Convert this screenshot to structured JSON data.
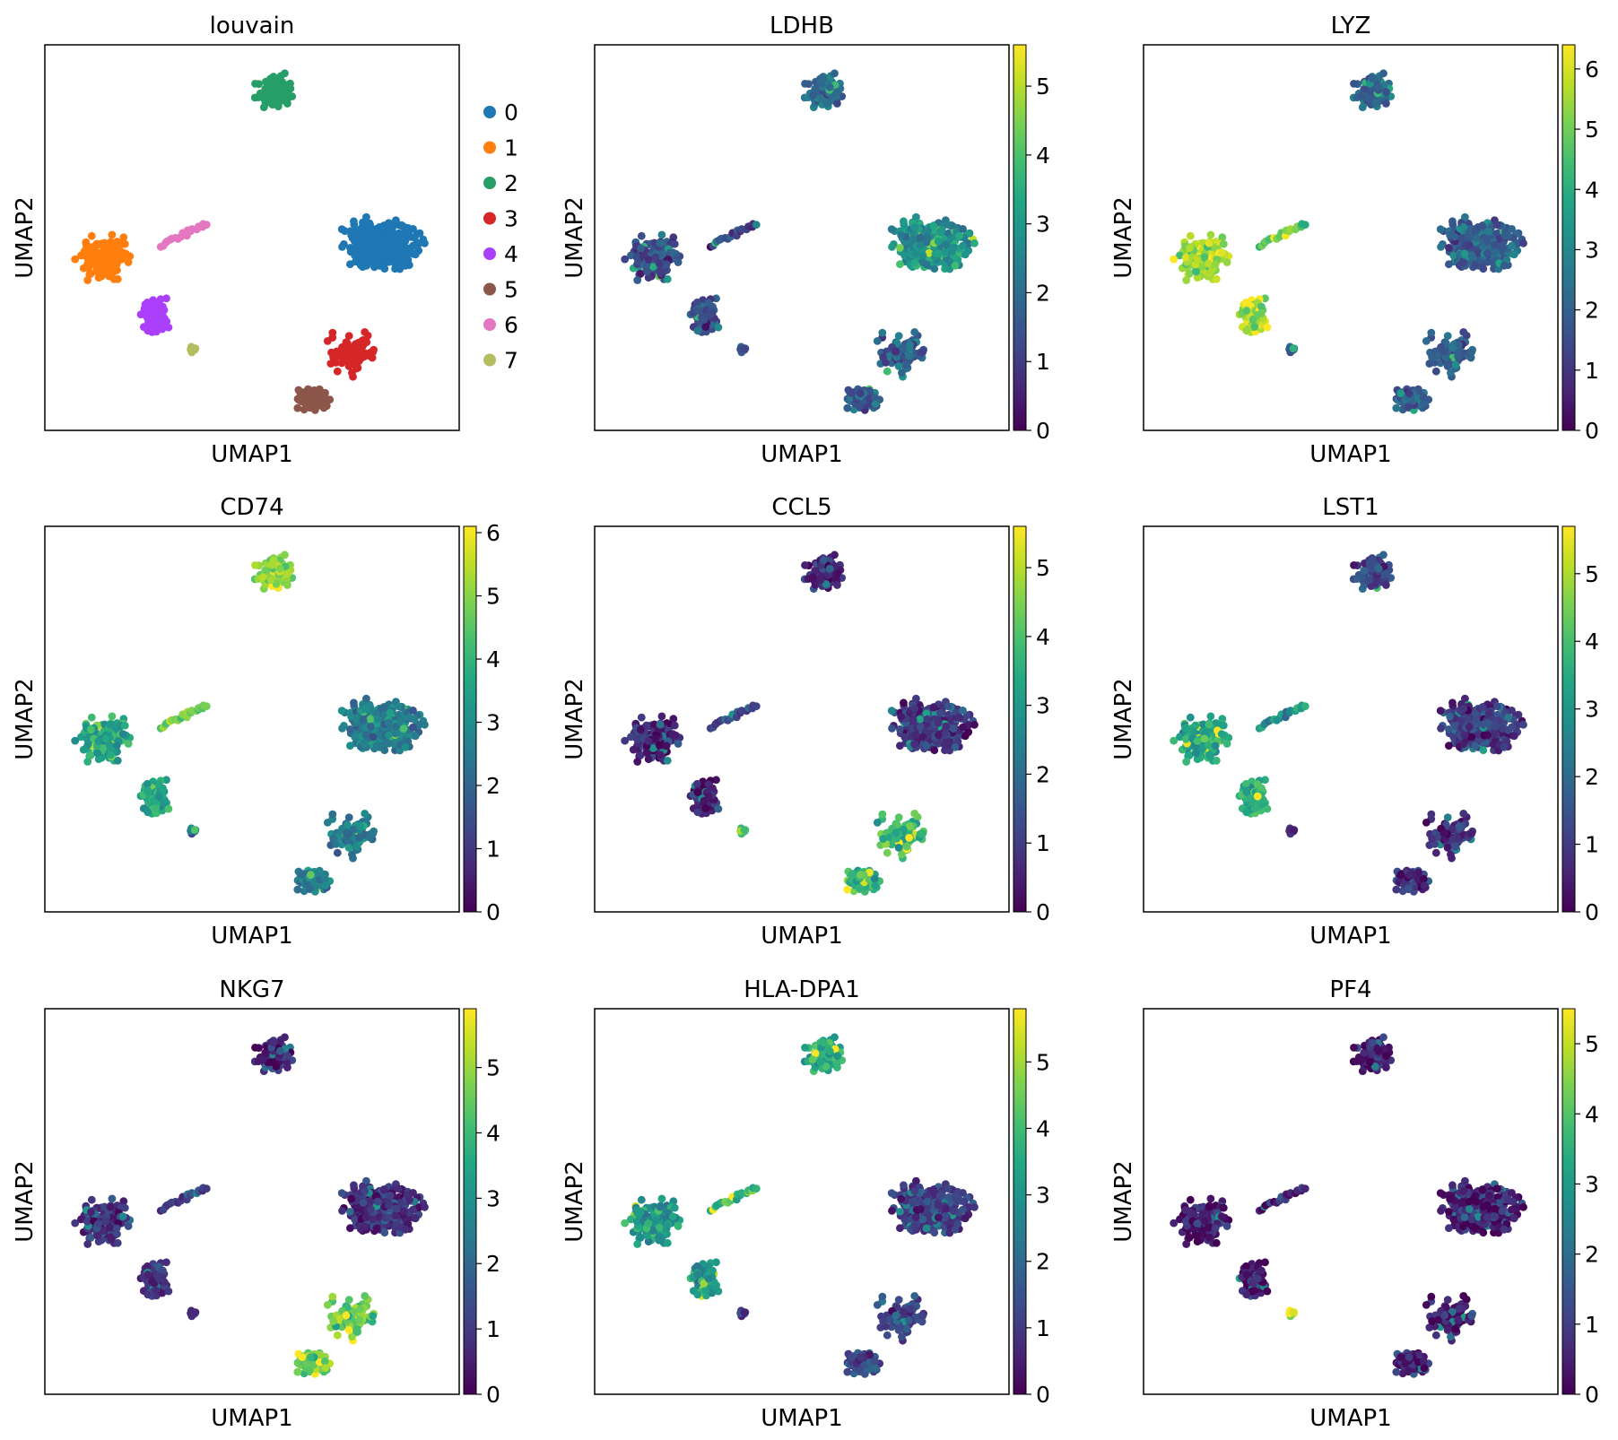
{
  "figure": {
    "xlabel": "UMAP1",
    "ylabel": "UMAP2"
  },
  "chart_data": [
    {
      "type": "scatter",
      "title": "louvain",
      "xlabel": "UMAP1",
      "ylabel": "UMAP2",
      "legend_position": "right",
      "categories": [
        {
          "label": "0",
          "color": "#1f77b4"
        },
        {
          "label": "1",
          "color": "#ff7f0e"
        },
        {
          "label": "2",
          "color": "#279e68"
        },
        {
          "label": "3",
          "color": "#d62728"
        },
        {
          "label": "4",
          "color": "#aa40fc"
        },
        {
          "label": "5",
          "color": "#8c564b"
        },
        {
          "label": "6",
          "color": "#e377c2"
        },
        {
          "label": "7",
          "color": "#b5bd61"
        }
      ]
    },
    {
      "type": "scatter",
      "title": "LDHB",
      "xlabel": "UMAP1",
      "ylabel": "UMAP2",
      "colormap": "viridis",
      "vmax": 5.6,
      "colorbar_ticks": [
        0,
        1,
        2,
        3,
        4,
        5
      ],
      "levels": {
        "top": 2.0,
        "left": 1.4,
        "right": 2.8,
        "lower": 1.7,
        "tail": 1.3,
        "tip": 1.2
      }
    },
    {
      "type": "scatter",
      "title": "LYZ",
      "xlabel": "UMAP1",
      "ylabel": "UMAP2",
      "colormap": "viridis",
      "vmax": 6.4,
      "colorbar_ticks": [
        0,
        1,
        2,
        3,
        4,
        5,
        6
      ],
      "levels": {
        "top": 2.0,
        "left": 5.4,
        "right": 1.9,
        "lower": 1.9,
        "tail": 4.8,
        "tip": 2.2
      }
    },
    {
      "type": "scatter",
      "title": "CD74",
      "xlabel": "UMAP1",
      "ylabel": "UMAP2",
      "colormap": "viridis",
      "vmax": 6.1,
      "colorbar_ticks": [
        0,
        1,
        2,
        3,
        4,
        5,
        6
      ],
      "levels": {
        "top": 5.0,
        "left": 3.6,
        "right": 2.6,
        "lower": 2.5,
        "tail": 4.8,
        "tip": 2.4
      }
    },
    {
      "type": "scatter",
      "title": "CCL5",
      "xlabel": "UMAP1",
      "ylabel": "UMAP2",
      "colormap": "viridis",
      "vmax": 5.6,
      "colorbar_ticks": [
        0,
        1,
        2,
        3,
        4,
        5
      ],
      "levels": {
        "top": 0.6,
        "left": 0.6,
        "right": 0.9,
        "lower": 3.7,
        "tail": 1.2,
        "tip": 4.0
      }
    },
    {
      "type": "scatter",
      "title": "LST1",
      "xlabel": "UMAP1",
      "ylabel": "UMAP2",
      "colormap": "viridis",
      "vmax": 5.7,
      "colorbar_ticks": [
        0,
        1,
        2,
        3,
        4,
        5
      ],
      "levels": {
        "top": 1.2,
        "left": 3.5,
        "right": 1.0,
        "lower": 0.8,
        "tail": 2.8,
        "tip": 0.9
      }
    },
    {
      "type": "scatter",
      "title": "NKG7",
      "xlabel": "UMAP1",
      "ylabel": "UMAP2",
      "colormap": "viridis",
      "vmax": 5.9,
      "colorbar_ticks": [
        0,
        1,
        2,
        3,
        4,
        5
      ],
      "levels": {
        "top": 0.5,
        "left": 0.9,
        "right": 0.8,
        "lower": 4.6,
        "tail": 1.2,
        "tip": 0.8
      }
    },
    {
      "type": "scatter",
      "title": "HLA-DPA1",
      "xlabel": "UMAP1",
      "ylabel": "UMAP2",
      "colormap": "viridis",
      "vmax": 5.8,
      "colorbar_ticks": [
        0,
        1,
        2,
        3,
        4,
        5
      ],
      "levels": {
        "top": 3.6,
        "left": 3.0,
        "right": 1.0,
        "lower": 1.3,
        "tail": 4.2,
        "tip": 1.0
      }
    },
    {
      "type": "scatter",
      "title": "PF4",
      "xlabel": "UMAP1",
      "ylabel": "UMAP2",
      "colormap": "viridis",
      "vmax": 5.5,
      "colorbar_ticks": [
        0,
        1,
        2,
        3,
        4,
        5
      ],
      "levels": {
        "top": 0.4,
        "left": 0.4,
        "right": 0.4,
        "lower": 0.4,
        "tail": 0.6,
        "tip": 5.2
      }
    }
  ]
}
